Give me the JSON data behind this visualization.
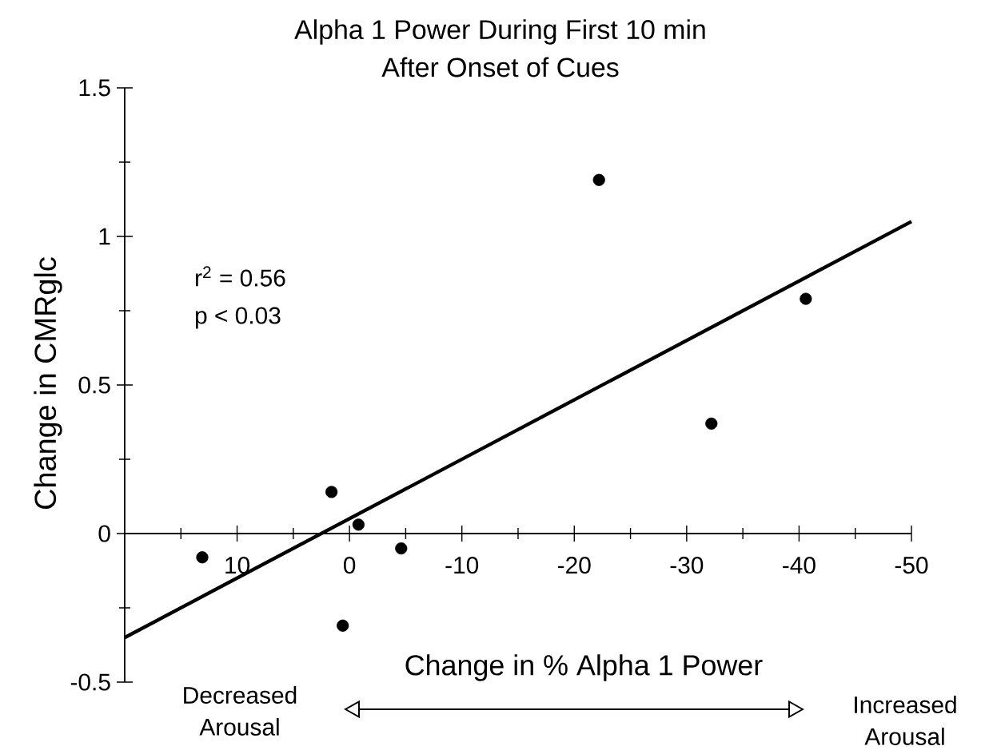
{
  "chart_data": {
    "type": "scatter",
    "title": "Alpha 1 Power During First 10 min",
    "subtitle": "After Onset of Cues",
    "xlabel": "Change in % Alpha 1 Power",
    "ylabel": "Change in CMRglc",
    "annotations": [
      "r$^{2}$ = 0.56",
      "p < 0.03",
      "Decreased Arousal",
      "Increased Arousal"
    ],
    "xlim": [
      20,
      -50
    ],
    "ylim": [
      -0.5,
      1.5
    ],
    "xticks": [
      {
        "value": 15,
        "label": null
      },
      10,
      {
        "value": 5,
        "label": null
      },
      0,
      {
        "value": -5,
        "label": null
      },
      -10,
      {
        "value": -15,
        "label": null
      },
      -20,
      {
        "value": -25,
        "label": null
      },
      -30,
      {
        "value": -35,
        "label": null
      },
      -40,
      {
        "value": -45,
        "label": null
      },
      -50
    ],
    "yticks": [
      -0.5,
      {
        "value": -0.25,
        "label": null
      },
      0,
      {
        "value": 0.25,
        "label": null
      },
      0.5,
      {
        "value": 0.75,
        "label": null
      },
      1,
      {
        "value": 1.25,
        "label": null
      },
      1.5
    ],
    "series": [
      {
        "marker": "circle",
        "color": "#000000",
        "x": [
          13.1,
          1.6,
          -0.8,
          -4.6,
          0.6,
          -22.2,
          -40.6,
          -32.2
        ],
        "values": [
          -0.08,
          0.14,
          0.03,
          -0.05,
          -0.31,
          1.19,
          0.79,
          0.37
        ]
      },
      {
        "type": "line",
        "marker": "none",
        "color": "#000000",
        "x": [
          20,
          -50
        ],
        "values": [
          -0.35,
          1.05
        ]
      }
    ]
  }
}
